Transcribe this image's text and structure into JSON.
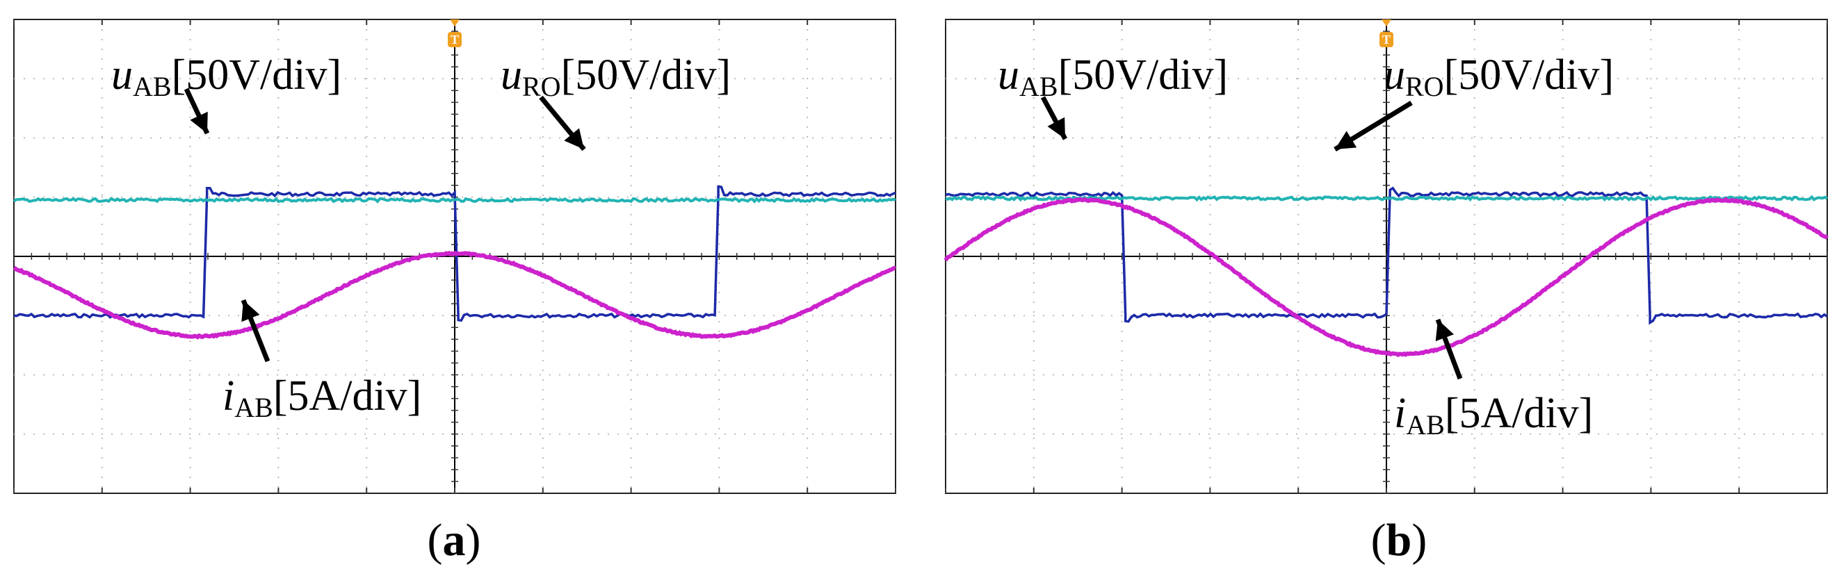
{
  "chart_data": [
    {
      "panel": "a",
      "type": "line",
      "caption": "a",
      "grid": true,
      "divisions": {
        "x": 10,
        "y": 8
      },
      "trigger_marker": "T",
      "colors": {
        "u_AB": "#1c2aa8",
        "u_RO": "#22b3b3",
        "i_AB": "#cc22cc",
        "grid": "#bbbbbb",
        "axis": "#000000",
        "marker": "#f0a020"
      },
      "series": [
        {
          "name": "u_AB",
          "scale": "50V/div",
          "kind": "square",
          "high_div": 1.05,
          "low_div": -1.0,
          "transitions_div": [
            2.15,
            5.0,
            7.95
          ],
          "initial": "low"
        },
        {
          "name": "u_RO",
          "scale": "50V/div",
          "kind": "dc",
          "level_div": 0.95
        },
        {
          "name": "i_AB",
          "scale": "5A/div",
          "kind": "sine",
          "amplitude_div": 0.7,
          "peak_x_div": 5.0,
          "period_div": 5.8,
          "offset_div": -0.65
        }
      ],
      "annotations": [
        {
          "series": "u_AB",
          "italic": "u",
          "sub": "AB",
          "rest": "[50V/div]"
        },
        {
          "series": "u_RO",
          "italic": "u",
          "sub": "RO",
          "rest": "[50V/div]"
        },
        {
          "series": "i_AB",
          "italic": "i",
          "sub": "AB",
          "rest": "[5A/div]"
        }
      ]
    },
    {
      "panel": "b",
      "type": "line",
      "caption": "b",
      "grid": true,
      "divisions": {
        "x": 10,
        "y": 8
      },
      "trigger_marker": "T",
      "colors": {
        "u_AB": "#1c2aa8",
        "u_RO": "#22b3b3",
        "i_AB": "#cc22cc",
        "grid": "#bbbbbb",
        "axis": "#000000",
        "marker": "#f0a020"
      },
      "series": [
        {
          "name": "u_AB",
          "scale": "50V/div",
          "kind": "square",
          "high_div": 1.05,
          "low_div": -1.0,
          "transitions_div": [
            2.0,
            5.0,
            7.95
          ],
          "initial": "high"
        },
        {
          "name": "u_RO",
          "scale": "50V/div",
          "kind": "dc",
          "level_div": 0.98
        },
        {
          "name": "i_AB",
          "scale": "5A/div",
          "kind": "sine",
          "amplitude_div": 1.3,
          "peak_x_div": 1.55,
          "period_div": 7.25,
          "offset_div": -0.35
        }
      ],
      "annotations": [
        {
          "series": "u_AB",
          "italic": "u",
          "sub": "AB",
          "rest": "[50V/div]"
        },
        {
          "series": "u_RO",
          "italic": "u",
          "sub": "RO",
          "rest": "[50V/div]"
        },
        {
          "series": "i_AB",
          "italic": "i",
          "sub": "AB",
          "rest": "[5A/div]"
        }
      ]
    }
  ]
}
